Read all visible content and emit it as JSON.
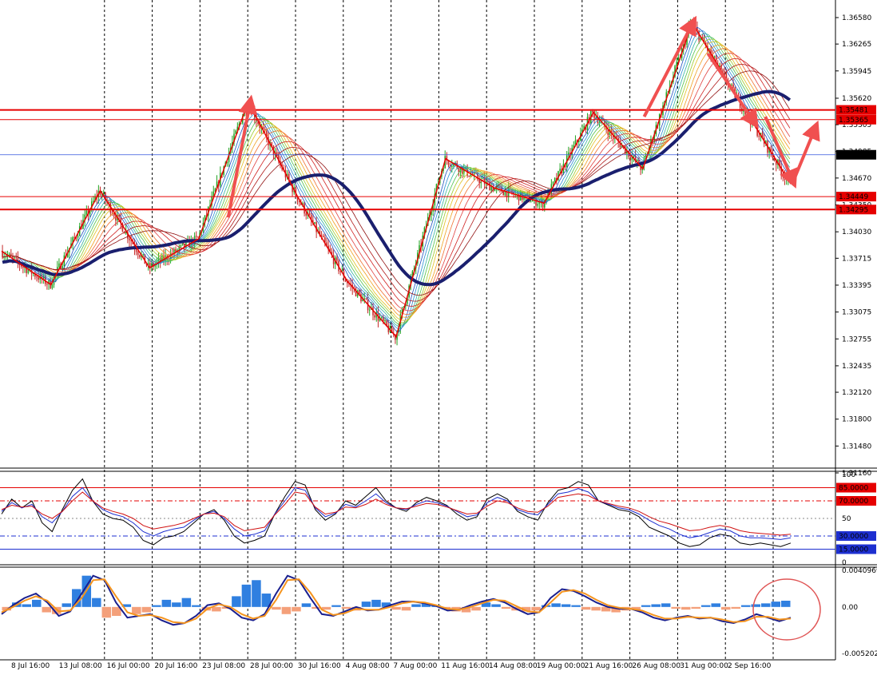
{
  "colors": {
    "background": "#ffffff",
    "grid": "#000000",
    "bull": "#22a322",
    "bear": "#c62828",
    "long_ma": "#1a1f6e",
    "red_line": "#e60000",
    "blue_hline": "#3355dd",
    "arrow": "#f05050",
    "hist_pos": "#2f7fe0",
    "hist_neg": "#f4a07a",
    "macd_line": "#1a1f8e",
    "signal_line": "#f5941e",
    "rsi_black": "#000000",
    "rsi_blue": "#1d2fd0",
    "rsi_red": "#d01010",
    "circle": "#e05555"
  },
  "chart_data": [
    {
      "type": "candlestick",
      "panel": "price",
      "symbol": "",
      "ylim": [
        1.3116,
        1.3658
      ],
      "yticks": [
        "1.36580",
        "1.36265",
        "1.35945",
        "1.35620",
        "1.35305",
        "1.34985",
        "1.34670",
        "1.34350",
        "1.34030",
        "1.33715",
        "1.33395",
        "1.33075",
        "1.32755",
        "1.32435",
        "1.32120",
        "1.31800",
        "1.31480",
        "1.31160"
      ],
      "x_labels": [
        "8 Jul 16:00",
        "13 Jul 08:00",
        "16 Jul 00:00",
        "20 Jul 16:00",
        "23 Jul 08:00",
        "28 Jul 00:00",
        "30 Jul 16:00",
        "4 Aug 08:00",
        "7 Aug 00:00",
        "11 Aug 16:00",
        "14 Aug 08:00",
        "19 Aug 00:00",
        "21 Aug 16:00",
        "26 Aug 08:00",
        "31 Aug 00:00",
        "2 Sep 16:00"
      ],
      "grid": "vertical dashed",
      "horizontal_levels": [
        {
          "value": 1.35481,
          "label": "1.35481",
          "style": "red"
        },
        {
          "value": 1.35365,
          "label": "1.35365",
          "style": "red"
        },
        {
          "value": 1.34947,
          "label": "1.34947",
          "style": "current"
        },
        {
          "value": 1.34449,
          "label": "1.34449",
          "style": "red"
        },
        {
          "value": 1.34295,
          "label": "1.34295",
          "style": "red"
        }
      ],
      "zigzag": [
        {
          "x": "8 Jul 16:00",
          "y": 1.338
        },
        {
          "x": "9 Jul",
          "y": 1.334
        },
        {
          "x": "10 Jul",
          "y": 1.3452
        },
        {
          "x": "13 Jul 00:00",
          "y": 1.336
        },
        {
          "x": "14 Jul",
          "y": 1.3395
        },
        {
          "x": "15 Jul",
          "y": 1.3558
        },
        {
          "x": "20 Jul 16:00",
          "y": 1.3445
        },
        {
          "x": "24 Jul",
          "y": 1.3345
        },
        {
          "x": "27 Jul",
          "y": 1.3278
        },
        {
          "x": "30 Jul",
          "y": 1.349
        },
        {
          "x": "4 Aug",
          "y": 1.3455
        },
        {
          "x": "7 Aug 00:00",
          "y": 1.3437
        },
        {
          "x": "11 Aug 08:00",
          "y": 1.3545
        },
        {
          "x": "12 Aug",
          "y": 1.3478
        },
        {
          "x": "19 Aug 08:00",
          "y": 1.3652
        },
        {
          "x": "28 Aug",
          "y": 1.3555
        },
        {
          "x": "2 Sep 08:00",
          "y": 1.346
        }
      ],
      "moving_average_long": [
        1.338,
        1.339,
        1.3405,
        1.3418,
        1.3415,
        1.3418,
        1.3435,
        1.3448,
        1.3445,
        1.342,
        1.3405,
        1.3378,
        1.336,
        1.335,
        1.337,
        1.34,
        1.3425,
        1.3435,
        1.3442,
        1.3455,
        1.3473,
        1.3485,
        1.3498,
        1.3518,
        1.354,
        1.3562,
        1.3568,
        1.3565,
        1.3555,
        1.355
      ],
      "annotation_arrows": [
        {
          "from": "13 Jul up-move",
          "to": "16 Jul peak"
        },
        {
          "from": "14 Aug",
          "to": "19 Aug 16:00"
        },
        {
          "from": "21 Aug",
          "to": "28 Aug"
        },
        {
          "from": "31 Aug",
          "to": "2 Sep 20:00"
        },
        {
          "from": "2 Sep 20:00",
          "to": "3 Sep"
        }
      ]
    },
    {
      "type": "line",
      "panel": "oscillator",
      "ylim": [
        0,
        100
      ],
      "yticks": [
        "100",
        "50",
        "0"
      ],
      "levels": [
        {
          "value": 85,
          "label": "85.0000",
          "style": "red solid"
        },
        {
          "value": 70,
          "label": "70.0000",
          "style": "red dash-dot"
        },
        {
          "value": 50,
          "label": "",
          "style": "gray dotted"
        },
        {
          "value": 30,
          "label": "30.0000",
          "style": "blue dash-dot"
        },
        {
          "value": 15,
          "label": "15.0000",
          "style": "blue solid"
        }
      ],
      "series": [
        {
          "values": [
            55,
            72,
            62,
            70,
            45,
            35,
            60,
            82,
            95,
            70,
            55,
            50,
            48,
            40,
            25,
            20,
            28,
            30,
            35,
            45,
            55,
            60,
            48,
            30,
            22,
            25,
            30,
            55,
            75,
            92,
            88,
            60,
            48,
            55,
            70,
            65,
            75,
            85,
            70,
            62,
            58,
            68,
            74,
            70,
            65,
            55,
            48,
            52,
            72,
            78,
            72,
            58,
            52,
            48,
            68,
            82,
            85,
            92,
            88,
            70,
            65,
            60,
            58,
            52,
            40,
            35,
            30,
            22,
            18,
            20,
            28,
            32,
            30,
            22,
            20,
            22,
            20,
            18,
            22
          ]
        },
        {
          "values": [
            58,
            68,
            62,
            66,
            52,
            45,
            58,
            75,
            85,
            70,
            60,
            55,
            52,
            45,
            35,
            30,
            35,
            38,
            40,
            48,
            55,
            58,
            50,
            38,
            30,
            32,
            36,
            55,
            70,
            85,
            82,
            62,
            52,
            56,
            66,
            63,
            70,
            78,
            68,
            62,
            60,
            66,
            70,
            68,
            64,
            58,
            52,
            54,
            68,
            74,
            70,
            60,
            56,
            54,
            66,
            78,
            80,
            84,
            80,
            70,
            66,
            62,
            60,
            55,
            48,
            42,
            38,
            32,
            28,
            30,
            34,
            38,
            36,
            30,
            28,
            28,
            27,
            26,
            28
          ]
        },
        {
          "values": [
            60,
            65,
            63,
            64,
            55,
            50,
            58,
            70,
            80,
            70,
            62,
            58,
            55,
            50,
            42,
            38,
            40,
            42,
            45,
            50,
            55,
            56,
            52,
            42,
            36,
            38,
            40,
            54,
            66,
            80,
            78,
            63,
            55,
            57,
            63,
            62,
            66,
            72,
            66,
            62,
            61,
            64,
            67,
            66,
            63,
            59,
            55,
            56,
            64,
            70,
            68,
            62,
            58,
            57,
            64,
            74,
            76,
            78,
            76,
            70,
            67,
            64,
            62,
            58,
            52,
            47,
            44,
            40,
            36,
            37,
            40,
            42,
            40,
            36,
            34,
            33,
            32,
            31,
            32
          ]
        }
      ]
    },
    {
      "type": "bar+line",
      "panel": "macd",
      "ylim": [
        -0.005202,
        0.004097
      ],
      "yticks": [
        "0.0040969",
        "0.00",
        "-0.005202"
      ],
      "histogram": [
        -0.0004,
        0.0005,
        0.0003,
        0.0008,
        -0.0006,
        -0.0008,
        0.0004,
        0.002,
        0.0035,
        0.001,
        -0.0012,
        -0.001,
        0.0003,
        -0.0008,
        -0.0006,
        0.0002,
        0.0008,
        0.0005,
        0.001,
        0.0002,
        -0.0004,
        -0.0005,
        -0.0002,
        0.0012,
        0.0025,
        0.003,
        0.0015,
        -0.0003,
        -0.0008,
        -0.0005,
        0.0004,
        -0.0002,
        -0.0003,
        0.0002,
        -0.0002,
        -0.0004,
        0.0006,
        0.0008,
        0.0005,
        -0.0003,
        -0.0004,
        0.0003,
        0.0004,
        0.0002,
        -0.0002,
        -0.0005,
        -0.0006,
        -0.0004,
        0.0005,
        0.0003,
        -0.0002,
        -0.0004,
        -0.0005,
        -0.0004,
        0.0002,
        0.0004,
        0.0003,
        0.0002,
        -0.0003,
        -0.0004,
        -0.0005,
        -0.0006,
        -0.0004,
        -0.0003,
        0.0002,
        0.0003,
        0.0004,
        -0.0002,
        -0.0003,
        -0.0002,
        0.0002,
        0.0004,
        -0.0003,
        -0.0002,
        0.0002,
        0.0003,
        0.0004,
        0.0006,
        0.0007
      ],
      "series": [
        {
          "values": [
            -0.0008,
            0.0002,
            0.001,
            0.0015,
            0.0005,
            -0.001,
            -0.0005,
            0.0015,
            0.0035,
            0.003,
            0.0005,
            -0.0012,
            -0.001,
            -0.0008,
            -0.0015,
            -0.002,
            -0.0018,
            -0.001,
            0.0002,
            0.0004,
            -0.0002,
            -0.0012,
            -0.0015,
            -0.0008,
            0.0015,
            0.0035,
            0.003,
            0.001,
            -0.0008,
            -0.001,
            -0.0005,
            0.0,
            -0.0004,
            -0.0003,
            0.0002,
            0.0006,
            0.0006,
            0.0004,
            0.0001,
            -0.0004,
            -0.0003,
            0.0002,
            0.0006,
            0.0009,
            0.0005,
            -0.0002,
            -0.0008,
            -0.0006,
            0.001,
            0.002,
            0.0018,
            0.0012,
            0.0005,
            0.0,
            -0.0002,
            -0.0002,
            -0.0006,
            -0.0012,
            -0.0015,
            -0.0012,
            -0.001,
            -0.0013,
            -0.0012,
            -0.0016,
            -0.0018,
            -0.0014,
            -0.0008,
            -0.0012,
            -0.0016,
            -0.0012
          ]
        },
        {
          "values": [
            -0.0006,
            0.0,
            0.0007,
            0.0012,
            0.0007,
            -0.0005,
            -0.0004,
            0.001,
            0.003,
            0.0031,
            0.0012,
            -0.0006,
            -0.001,
            -0.0009,
            -0.0012,
            -0.0017,
            -0.0018,
            -0.0013,
            -0.0002,
            0.0003,
            0.0,
            -0.0008,
            -0.0013,
            -0.001,
            0.0008,
            0.003,
            0.0031,
            0.0016,
            -0.0003,
            -0.0009,
            -0.0007,
            -0.0002,
            -0.0003,
            -0.0003,
            0.0,
            0.0004,
            0.0006,
            0.0005,
            0.0002,
            -0.0002,
            -0.0003,
            0.0,
            0.0004,
            0.0008,
            0.0007,
            0.0001,
            -0.0005,
            -0.0006,
            0.0005,
            0.0017,
            0.0019,
            0.0015,
            0.0008,
            0.0002,
            -0.0001,
            -0.0002,
            -0.0004,
            -0.0009,
            -0.0013,
            -0.0013,
            -0.0011,
            -0.0012,
            -0.0012,
            -0.0014,
            -0.0017,
            -0.0016,
            -0.0011,
            -0.0011,
            -0.0014,
            -0.0013
          ]
        }
      ]
    }
  ]
}
